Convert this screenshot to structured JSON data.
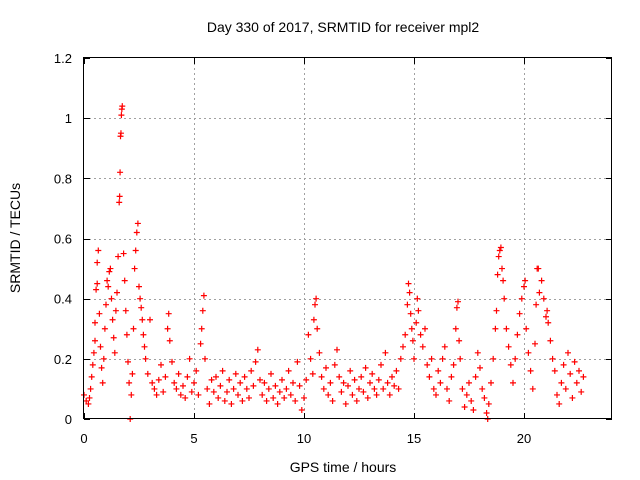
{
  "chart_data": {
    "type": "scatter",
    "title": "Day 330 of 2017, SRMTID for receiver mpl2",
    "xlabel": "GPS time / hours",
    "ylabel": "SRMTID / TECUs",
    "xlim": [
      0,
      24
    ],
    "ylim": [
      0,
      1.2
    ],
    "x_ticks": [
      0,
      5,
      10,
      15,
      20
    ],
    "y_ticks": [
      0,
      0.2,
      0.4,
      0.6,
      0.8,
      1,
      1.2
    ],
    "x_tick_labels": [
      "0",
      "5",
      "10",
      "15",
      "20"
    ],
    "y_tick_labels": [
      "0",
      "0.2",
      "0.4",
      "0.6",
      "0.8",
      "1",
      "1.2"
    ],
    "grid": true,
    "marker": "+",
    "color": "#ff0000",
    "series": [
      {
        "name": "SRMTID",
        "points": [
          [
            0.0,
            0.08
          ],
          [
            0.1,
            0.06
          ],
          [
            0.2,
            0.05
          ],
          [
            0.25,
            0.07
          ],
          [
            0.3,
            0.1
          ],
          [
            0.35,
            0.14
          ],
          [
            0.4,
            0.18
          ],
          [
            0.45,
            0.22
          ],
          [
            0.5,
            0.26
          ],
          [
            0.5,
            0.32
          ],
          [
            0.55,
            0.43
          ],
          [
            0.6,
            0.45
          ],
          [
            0.6,
            0.52
          ],
          [
            0.65,
            0.56
          ],
          [
            0.7,
            0.35
          ],
          [
            0.75,
            0.24
          ],
          [
            0.8,
            0.17
          ],
          [
            0.85,
            0.12
          ],
          [
            0.9,
            0.2
          ],
          [
            0.95,
            0.3
          ],
          [
            1.0,
            0.38
          ],
          [
            1.05,
            0.46
          ],
          [
            1.1,
            0.44
          ],
          [
            1.15,
            0.49
          ],
          [
            1.2,
            0.5
          ],
          [
            1.25,
            0.4
          ],
          [
            1.3,
            0.33
          ],
          [
            1.35,
            0.27
          ],
          [
            1.4,
            0.22
          ],
          [
            1.45,
            0.36
          ],
          [
            1.5,
            0.42
          ],
          [
            1.55,
            0.54
          ],
          [
            1.6,
            0.72
          ],
          [
            1.62,
            0.74
          ],
          [
            1.64,
            0.82
          ],
          [
            1.66,
            0.94
          ],
          [
            1.68,
            0.95
          ],
          [
            1.7,
            1.01
          ],
          [
            1.72,
            1.03
          ],
          [
            1.74,
            1.04
          ],
          [
            1.8,
            0.55
          ],
          [
            1.85,
            0.46
          ],
          [
            1.9,
            0.36
          ],
          [
            1.95,
            0.28
          ],
          [
            2.0,
            0.19
          ],
          [
            2.05,
            0.12
          ],
          [
            2.1,
            0.0
          ],
          [
            2.15,
            0.08
          ],
          [
            2.2,
            0.15
          ],
          [
            2.25,
            0.3
          ],
          [
            2.3,
            0.5
          ],
          [
            2.35,
            0.56
          ],
          [
            2.4,
            0.62
          ],
          [
            2.45,
            0.65
          ],
          [
            2.5,
            0.44
          ],
          [
            2.55,
            0.4
          ],
          [
            2.6,
            0.37
          ],
          [
            2.65,
            0.33
          ],
          [
            2.7,
            0.28
          ],
          [
            2.75,
            0.24
          ],
          [
            2.8,
            0.2
          ],
          [
            2.9,
            0.15
          ],
          [
            3.0,
            0.33
          ],
          [
            3.1,
            0.12
          ],
          [
            3.2,
            0.1
          ],
          [
            3.3,
            0.08
          ],
          [
            3.4,
            0.13
          ],
          [
            3.5,
            0.18
          ],
          [
            3.6,
            0.09
          ],
          [
            3.7,
            0.14
          ],
          [
            3.8,
            0.3
          ],
          [
            3.85,
            0.35
          ],
          [
            3.9,
            0.26
          ],
          [
            4.0,
            0.19
          ],
          [
            4.1,
            0.12
          ],
          [
            4.2,
            0.1
          ],
          [
            4.3,
            0.15
          ],
          [
            4.4,
            0.08
          ],
          [
            4.5,
            0.11
          ],
          [
            4.6,
            0.07
          ],
          [
            4.7,
            0.14
          ],
          [
            4.8,
            0.2
          ],
          [
            4.9,
            0.09
          ],
          [
            5.0,
            0.12
          ],
          [
            5.1,
            0.16
          ],
          [
            5.2,
            0.08
          ],
          [
            5.3,
            0.25
          ],
          [
            5.35,
            0.3
          ],
          [
            5.4,
            0.36
          ],
          [
            5.45,
            0.41
          ],
          [
            5.5,
            0.2
          ],
          [
            5.6,
            0.1
          ],
          [
            5.7,
            0.05
          ],
          [
            5.8,
            0.13
          ],
          [
            5.9,
            0.09
          ],
          [
            6.0,
            0.14
          ],
          [
            6.1,
            0.07
          ],
          [
            6.2,
            0.11
          ],
          [
            6.3,
            0.16
          ],
          [
            6.4,
            0.06
          ],
          [
            6.5,
            0.09
          ],
          [
            6.6,
            0.13
          ],
          [
            6.7,
            0.05
          ],
          [
            6.8,
            0.1
          ],
          [
            6.9,
            0.15
          ],
          [
            7.0,
            0.08
          ],
          [
            7.1,
            0.12
          ],
          [
            7.2,
            0.06
          ],
          [
            7.3,
            0.14
          ],
          [
            7.4,
            0.1
          ],
          [
            7.5,
            0.07
          ],
          [
            7.6,
            0.16
          ],
          [
            7.7,
            0.11
          ],
          [
            7.8,
            0.19
          ],
          [
            7.9,
            0.23
          ],
          [
            8.0,
            0.13
          ],
          [
            8.1,
            0.08
          ],
          [
            8.2,
            0.12
          ],
          [
            8.3,
            0.06
          ],
          [
            8.4,
            0.1
          ],
          [
            8.5,
            0.15
          ],
          [
            8.6,
            0.07
          ],
          [
            8.7,
            0.11
          ],
          [
            8.8,
            0.05
          ],
          [
            8.9,
            0.09
          ],
          [
            9.0,
            0.13
          ],
          [
            9.1,
            0.07
          ],
          [
            9.2,
            0.1
          ],
          [
            9.3,
            0.16
          ],
          [
            9.4,
            0.08
          ],
          [
            9.5,
            0.12
          ],
          [
            9.6,
            0.06
          ],
          [
            9.7,
            0.19
          ],
          [
            9.8,
            0.11
          ],
          [
            9.9,
            0.03
          ],
          [
            10.0,
            0.07
          ],
          [
            10.1,
            0.13
          ],
          [
            10.2,
            0.28
          ],
          [
            10.3,
            0.2
          ],
          [
            10.4,
            0.15
          ],
          [
            10.45,
            0.33
          ],
          [
            10.5,
            0.38
          ],
          [
            10.55,
            0.4
          ],
          [
            10.6,
            0.3
          ],
          [
            10.7,
            0.22
          ],
          [
            10.8,
            0.14
          ],
          [
            10.9,
            0.1
          ],
          [
            11.0,
            0.17
          ],
          [
            11.1,
            0.08
          ],
          [
            11.2,
            0.12
          ],
          [
            11.3,
            0.06
          ],
          [
            11.4,
            0.18
          ],
          [
            11.5,
            0.23
          ],
          [
            11.6,
            0.14
          ],
          [
            11.7,
            0.09
          ],
          [
            11.8,
            0.12
          ],
          [
            11.9,
            0.05
          ],
          [
            12.0,
            0.11
          ],
          [
            12.1,
            0.16
          ],
          [
            12.2,
            0.08
          ],
          [
            12.3,
            0.13
          ],
          [
            12.4,
            0.06
          ],
          [
            12.5,
            0.1
          ],
          [
            12.6,
            0.14
          ],
          [
            12.7,
            0.09
          ],
          [
            12.8,
            0.17
          ],
          [
            12.9,
            0.07
          ],
          [
            13.0,
            0.12
          ],
          [
            13.1,
            0.15
          ],
          [
            13.2,
            0.1
          ],
          [
            13.3,
            0.08
          ],
          [
            13.4,
            0.13
          ],
          [
            13.5,
            0.18
          ],
          [
            13.6,
            0.1
          ],
          [
            13.7,
            0.22
          ],
          [
            13.8,
            0.12
          ],
          [
            13.9,
            0.08
          ],
          [
            14.0,
            0.14
          ],
          [
            14.1,
            0.11
          ],
          [
            14.2,
            0.16
          ],
          [
            14.3,
            0.1
          ],
          [
            14.4,
            0.2
          ],
          [
            14.5,
            0.24
          ],
          [
            14.6,
            0.28
          ],
          [
            14.7,
            0.38
          ],
          [
            14.75,
            0.45
          ],
          [
            14.8,
            0.42
          ],
          [
            14.85,
            0.35
          ],
          [
            14.9,
            0.3
          ],
          [
            14.95,
            0.26
          ],
          [
            15.0,
            0.2
          ],
          [
            15.1,
            0.32
          ],
          [
            15.15,
            0.4
          ],
          [
            15.2,
            0.36
          ],
          [
            15.3,
            0.28
          ],
          [
            15.4,
            0.24
          ],
          [
            15.5,
            0.3
          ],
          [
            15.6,
            0.18
          ],
          [
            15.7,
            0.14
          ],
          [
            15.8,
            0.2
          ],
          [
            15.9,
            0.1
          ],
          [
            16.0,
            0.08
          ],
          [
            16.1,
            0.16
          ],
          [
            16.2,
            0.12
          ],
          [
            16.3,
            0.2
          ],
          [
            16.4,
            0.24
          ],
          [
            16.5,
            0.1
          ],
          [
            16.6,
            0.06
          ],
          [
            16.7,
            0.14
          ],
          [
            16.8,
            0.18
          ],
          [
            16.9,
            0.3
          ],
          [
            16.95,
            0.37
          ],
          [
            17.0,
            0.39
          ],
          [
            17.05,
            0.26
          ],
          [
            17.1,
            0.2
          ],
          [
            17.2,
            0.1
          ],
          [
            17.3,
            0.04
          ],
          [
            17.4,
            0.08
          ],
          [
            17.5,
            0.12
          ],
          [
            17.6,
            0.06
          ],
          [
            17.7,
            0.03
          ],
          [
            17.8,
            0.14
          ],
          [
            17.9,
            0.22
          ],
          [
            18.0,
            0.17
          ],
          [
            18.1,
            0.1
          ],
          [
            18.2,
            0.07
          ],
          [
            18.3,
            0.02
          ],
          [
            18.35,
            0.0
          ],
          [
            18.4,
            0.05
          ],
          [
            18.5,
            0.12
          ],
          [
            18.6,
            0.2
          ],
          [
            18.7,
            0.3
          ],
          [
            18.75,
            0.36
          ],
          [
            18.8,
            0.48
          ],
          [
            18.85,
            0.54
          ],
          [
            18.9,
            0.56
          ],
          [
            18.95,
            0.57
          ],
          [
            19.0,
            0.5
          ],
          [
            19.05,
            0.46
          ],
          [
            19.1,
            0.4
          ],
          [
            19.2,
            0.3
          ],
          [
            19.3,
            0.24
          ],
          [
            19.4,
            0.18
          ],
          [
            19.5,
            0.12
          ],
          [
            19.6,
            0.2
          ],
          [
            19.7,
            0.28
          ],
          [
            19.8,
            0.35
          ],
          [
            19.9,
            0.4
          ],
          [
            20.0,
            0.44
          ],
          [
            20.05,
            0.46
          ],
          [
            20.1,
            0.3
          ],
          [
            20.2,
            0.22
          ],
          [
            20.3,
            0.16
          ],
          [
            20.4,
            0.1
          ],
          [
            20.5,
            0.25
          ],
          [
            20.55,
            0.38
          ],
          [
            20.6,
            0.5
          ],
          [
            20.65,
            0.5
          ],
          [
            20.7,
            0.42
          ],
          [
            20.8,
            0.46
          ],
          [
            20.9,
            0.4
          ],
          [
            21.0,
            0.34
          ],
          [
            21.05,
            0.36
          ],
          [
            21.1,
            0.32
          ],
          [
            21.2,
            0.26
          ],
          [
            21.3,
            0.2
          ],
          [
            21.4,
            0.16
          ],
          [
            21.5,
            0.08
          ],
          [
            21.6,
            0.05
          ],
          [
            21.7,
            0.12
          ],
          [
            21.8,
            0.18
          ],
          [
            21.9,
            0.1
          ],
          [
            22.0,
            0.22
          ],
          [
            22.1,
            0.15
          ],
          [
            22.2,
            0.07
          ],
          [
            22.3,
            0.19
          ],
          [
            22.4,
            0.12
          ],
          [
            22.5,
            0.16
          ],
          [
            22.6,
            0.09
          ],
          [
            22.7,
            0.14
          ]
        ]
      }
    ]
  }
}
